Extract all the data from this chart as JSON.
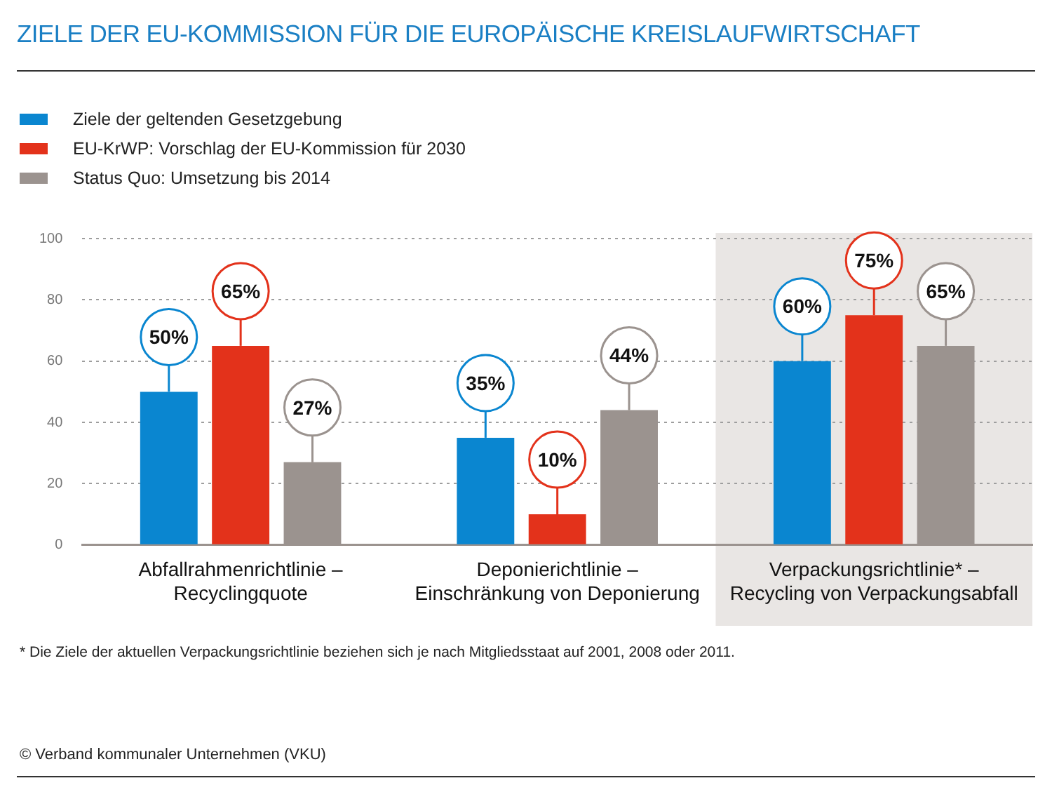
{
  "chart_data": {
    "type": "bar",
    "title": "ZIELE DER EU-KOMMISSION FÜR DIE EUROPÄISCHE KREISLAUFWIRTSCHAFT",
    "categories": [
      "Abfallrahmenrichtlinie –\nRecyclingquote",
      "Deponierichtlinie –\nEinschränkung von Deponierung",
      "Verpackungsrichtlinie* –\nRecycling von Verpackungsabfall"
    ],
    "series": [
      {
        "name": "Ziele der geltenden Gesetzgebung",
        "color": "#0a86d0",
        "values": [
          50,
          35,
          60
        ],
        "value_labels": [
          "50%",
          "35%",
          "60%"
        ]
      },
      {
        "name": "EU-KrWP: Vorschlag der EU-Kommission für 2030",
        "color": "#e3321b",
        "values": [
          65,
          10,
          75
        ],
        "value_labels": [
          "65%",
          "10%",
          "75%"
        ]
      },
      {
        "name": "Status Quo: Umsetzung bis 2014",
        "color": "#9b938f",
        "values": [
          27,
          44,
          65
        ],
        "value_labels": [
          "27%",
          "44%",
          "65%"
        ]
      }
    ],
    "ylim": [
      0,
      100
    ],
    "yticks": [
      0,
      20,
      40,
      60,
      80,
      100
    ],
    "grid": "y",
    "legend": "top left",
    "bands": [
      {
        "axis": "x",
        "from": "Verpackungsrichtlinie* –\nRecycling von Verpackungsabfall",
        "to": "Verpackungsrichtlinie* –\nRecycling von Verpackungsabfall",
        "color": "#e9e6e4"
      }
    ],
    "annotations": [
      "* Die Ziele der aktuellen Verpackungsrichtlinie beziehen sich je nach Mitgliedsstaat auf 2001, 2008 oder 2011.",
      "© Verband kommunaler Unternehmen (VKU)"
    ]
  }
}
